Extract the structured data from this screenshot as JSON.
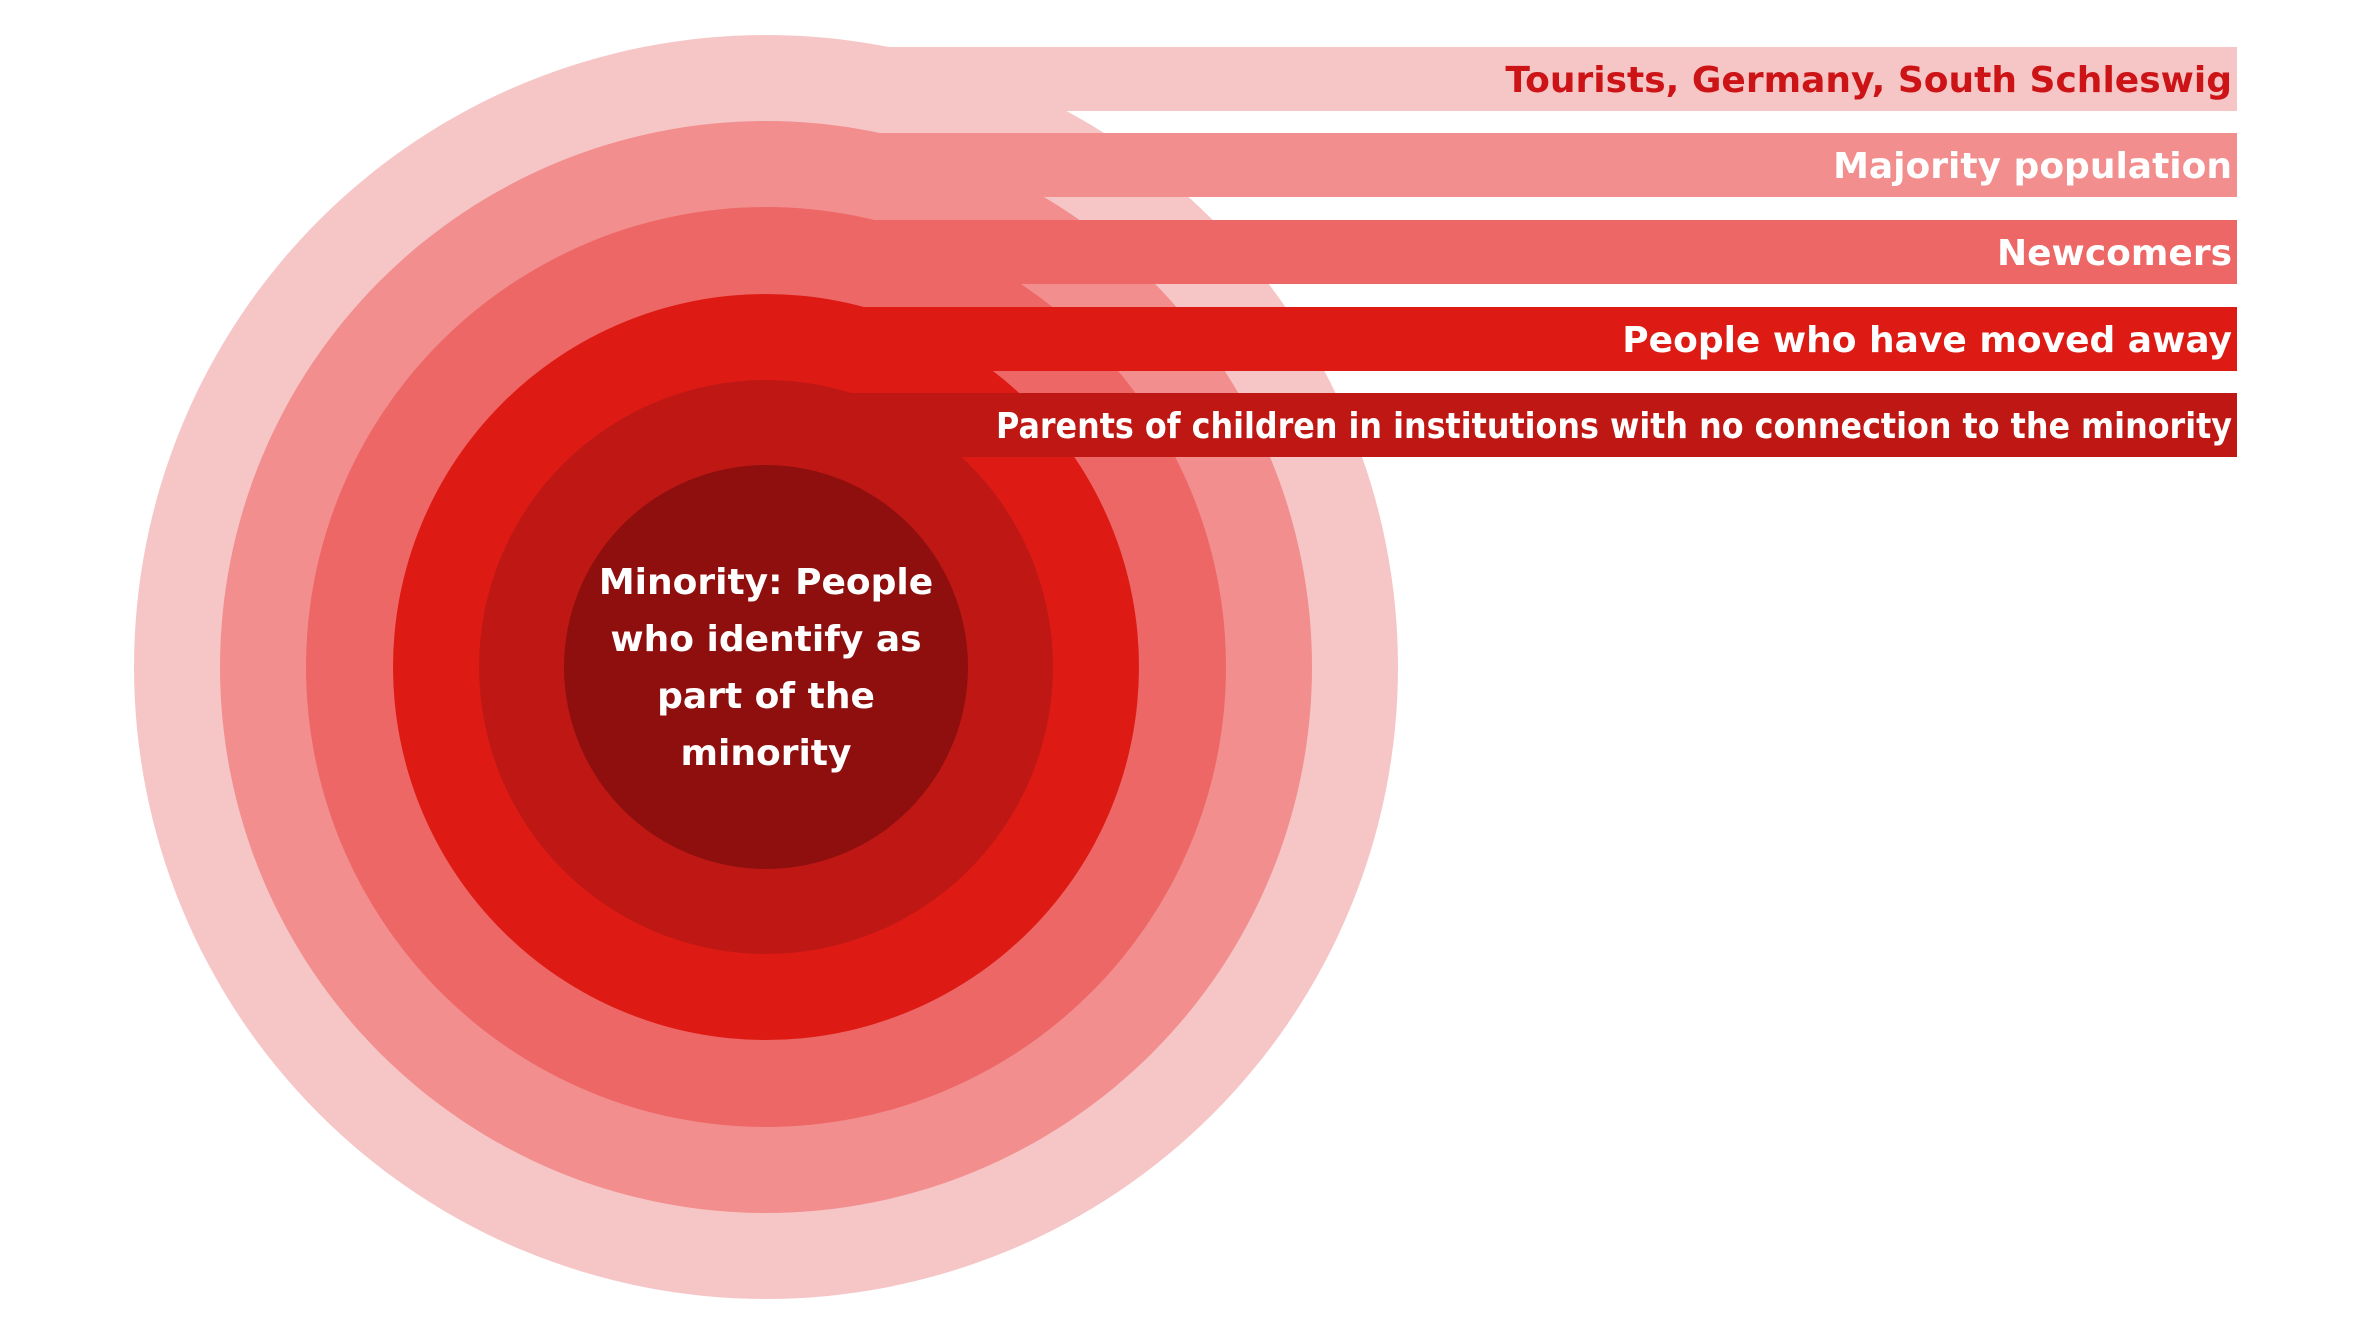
{
  "diagram": {
    "layers": [
      {
        "label": "Tourists, Germany, South Schleswig",
        "fill": "#f6c6c7",
        "text_color": "#cc1417"
      },
      {
        "label": "Majority population",
        "fill": "#f28e8e",
        "text_color": "#ffffff"
      },
      {
        "label": "Newcomers",
        "fill": "#ee6767",
        "text_color": "#ffffff"
      },
      {
        "label": "People who have moved away",
        "fill": "#dd1b14",
        "text_color": "#ffffff"
      },
      {
        "label": "Parents of children in institutions with no connection to the minority",
        "fill": "#bf1814",
        "text_color": "#ffffff"
      }
    ],
    "center": {
      "lines": [
        "Minority: People",
        "who identify as",
        "part of the",
        "minority"
      ],
      "fill": "#8e0f0e",
      "text_color": "#ffffff"
    }
  }
}
